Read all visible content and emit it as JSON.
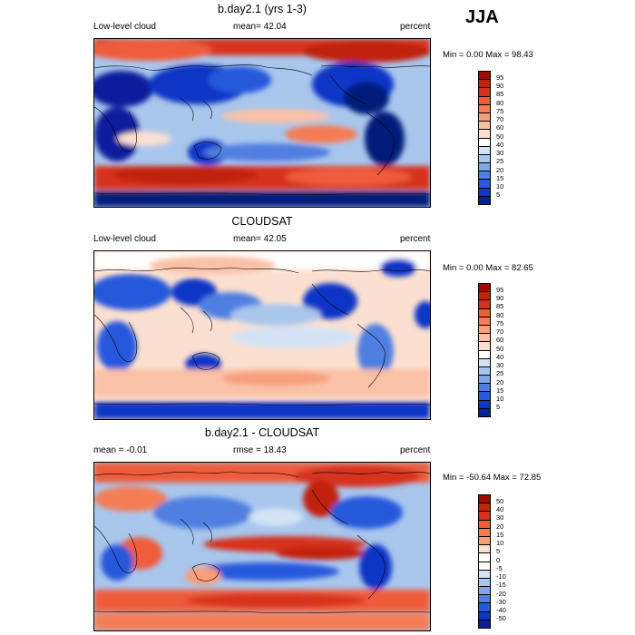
{
  "season": "JJA",
  "cbar_colors": {
    "mean": [
      "#9e0b00",
      "#c0240a",
      "#d7301f",
      "#ef5c3a",
      "#f57d55",
      "#f79e7a",
      "#f9c1a5",
      "#fbe0d1",
      "#ffffff",
      "#d3e3f5",
      "#a9c6ed",
      "#7ea7e6",
      "#4f7fe0",
      "#2659dc",
      "#0b36c6",
      "#0a1f9c",
      "#061a7a"
    ],
    "diff": [
      "#9e0b00",
      "#c0240a",
      "#d7301f",
      "#ef5c3a",
      "#f57d55",
      "#f79e7a",
      "#fbe0d1",
      "#ffffff",
      "#ffffff",
      "#d3e3f5",
      "#a9c6ed",
      "#7ea7e6",
      "#4f7fe0",
      "#2659dc",
      "#0b36c6",
      "#0a1f9c",
      "#061a7a"
    ]
  },
  "panels": [
    {
      "title": "b.day2.1 (yrs 1-3)",
      "left_label": "Low-level cloud",
      "center_label": "mean=  42.04",
      "right_label": "percent",
      "minmax": "Min =   0.00 Max =  98.43",
      "ticks": [
        "95",
        "90",
        "85",
        "80",
        "75",
        "70",
        "60",
        "50",
        "40",
        "30",
        "25",
        "20",
        "15",
        "10",
        "5"
      ]
    },
    {
      "title": "CLOUDSAT",
      "left_label": "Low-level cloud",
      "center_label": "mean=  42.05",
      "right_label": "percent",
      "minmax": "Min =   0.00 Max =  82.65",
      "ticks": [
        "95",
        "90",
        "85",
        "80",
        "75",
        "70",
        "60",
        "50",
        "40",
        "30",
        "25",
        "20",
        "15",
        "10",
        "5"
      ]
    },
    {
      "title": "b.day2.1 - CLOUDSAT",
      "left_label": "mean =  -0.01",
      "center_label": "rmse =  18.43",
      "right_label": "percent",
      "minmax": "Min = -50.64 Max =  72.85",
      "ticks": [
        "50",
        "40",
        "30",
        "20",
        "15",
        "10",
        "5",
        "0",
        "-5",
        "-10",
        "-15",
        "-20",
        "-30",
        "-40",
        "-50"
      ]
    }
  ]
}
